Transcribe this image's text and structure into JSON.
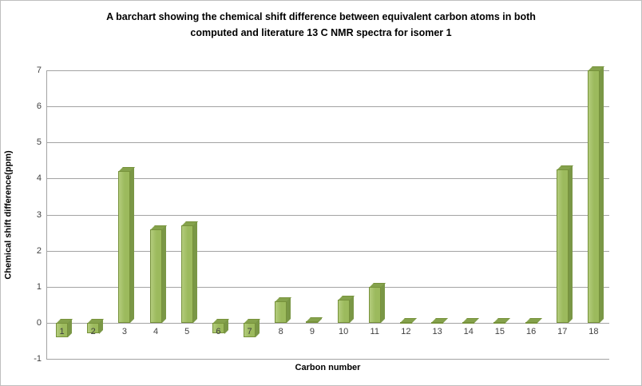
{
  "chart_data": {
    "type": "bar",
    "title": "A barchart showing the chemical shift difference between equivalent carbon atoms in both computed and literature  13 C NMR spectra for isomer 1",
    "xlabel": "Carbon number",
    "ylabel": "Chemical shift difference(ppm)",
    "categories": [
      "1",
      "2",
      "3",
      "4",
      "5",
      "6",
      "7",
      "8",
      "9",
      "10",
      "11",
      "12",
      "13",
      "14",
      "15",
      "16",
      "17",
      "18"
    ],
    "values": [
      -0.4,
      -0.3,
      4.2,
      2.6,
      2.7,
      -0.3,
      -0.4,
      0.6,
      0.05,
      0.65,
      1.0,
      0.03,
      0.03,
      0.03,
      0.03,
      0.03,
      4.25,
      7.0
    ],
    "ylim": [
      -1,
      7
    ],
    "ytick_step": 1,
    "grid": true,
    "legend": "none",
    "colors": {
      "bar_front": "#9cba5d",
      "bar_front_light": "#b3cc7c",
      "bar_top": "#85a24c",
      "bar_side": "#7a9746",
      "bar_border": "#77923b",
      "gridline": "#a3a3a3"
    }
  }
}
